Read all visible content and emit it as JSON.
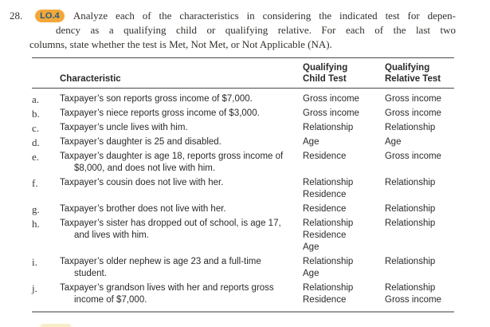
{
  "colors": {
    "lo_badge_bg": "#F3A73A",
    "lo_badge_text": "#1D5C80",
    "next_badge_bg": "#F8EFC8"
  },
  "problem": {
    "number": "28.",
    "lo_badge": "LO.4",
    "intro_lines": [
      "Analyze each of the characteristics in considering the indicated test for depen-",
      "dency as a qualifying child or qualifying relative. For each of the last two",
      "columns, state whether the test is Met, Not Met, or Not Applicable (NA)."
    ]
  },
  "table": {
    "headers": {
      "characteristic": "Characteristic",
      "child": [
        "Qualifying",
        "Child Test"
      ],
      "relative": [
        "Qualifying",
        "Relative Test"
      ]
    },
    "rows": [
      {
        "letter": "a.",
        "characteristic": [
          "Taxpayer’s son reports gross income of $7,000."
        ],
        "child": [
          "Gross income"
        ],
        "relative": [
          "Gross income"
        ]
      },
      {
        "letter": "b.",
        "characteristic": [
          "Taxpayer’s niece reports gross income of $3,000."
        ],
        "child": [
          "Gross income"
        ],
        "relative": [
          "Gross income"
        ]
      },
      {
        "letter": "c.",
        "characteristic": [
          "Taxpayer’s uncle lives with him."
        ],
        "child": [
          "Relationship"
        ],
        "relative": [
          "Relationship"
        ]
      },
      {
        "letter": "d.",
        "characteristic": [
          "Taxpayer’s daughter is 25 and disabled."
        ],
        "child": [
          "Age"
        ],
        "relative": [
          "Age"
        ]
      },
      {
        "letter": "e.",
        "characteristic": [
          "Taxpayer’s daughter is age 18, reports gross income of",
          "$8,000, and does not live with him."
        ],
        "child": [
          "Residence"
        ],
        "relative": [
          "Gross income"
        ]
      },
      {
        "letter": "f.",
        "characteristic": [
          "Taxpayer’s cousin does not live with her."
        ],
        "child": [
          "Relationship",
          "Residence"
        ],
        "relative": [
          "Relationship"
        ]
      },
      {
        "letter": "g.",
        "characteristic": [
          "Taxpayer’s brother does not live with her."
        ],
        "child": [
          "Residence"
        ],
        "relative": [
          "Relationship"
        ]
      },
      {
        "letter": "h.",
        "characteristic": [
          "Taxpayer’s sister has dropped out of school, is age 17,",
          "and lives with him."
        ],
        "child": [
          "Relationship",
          "Residence",
          "Age"
        ],
        "relative": [
          "Relationship"
        ]
      },
      {
        "letter": "i.",
        "characteristic": [
          "Taxpayer’s older nephew is age 23 and a full-time",
          "student."
        ],
        "child": [
          "Relationship",
          "Age"
        ],
        "relative": [
          "Relationship"
        ]
      },
      {
        "letter": "j.",
        "characteristic": [
          "Taxpayer’s grandson lives with her and reports gross",
          "income of $7,000."
        ],
        "child": [
          "Relationship",
          "Residence"
        ],
        "relative": [
          "Relationship",
          "Gross income"
        ]
      }
    ]
  }
}
